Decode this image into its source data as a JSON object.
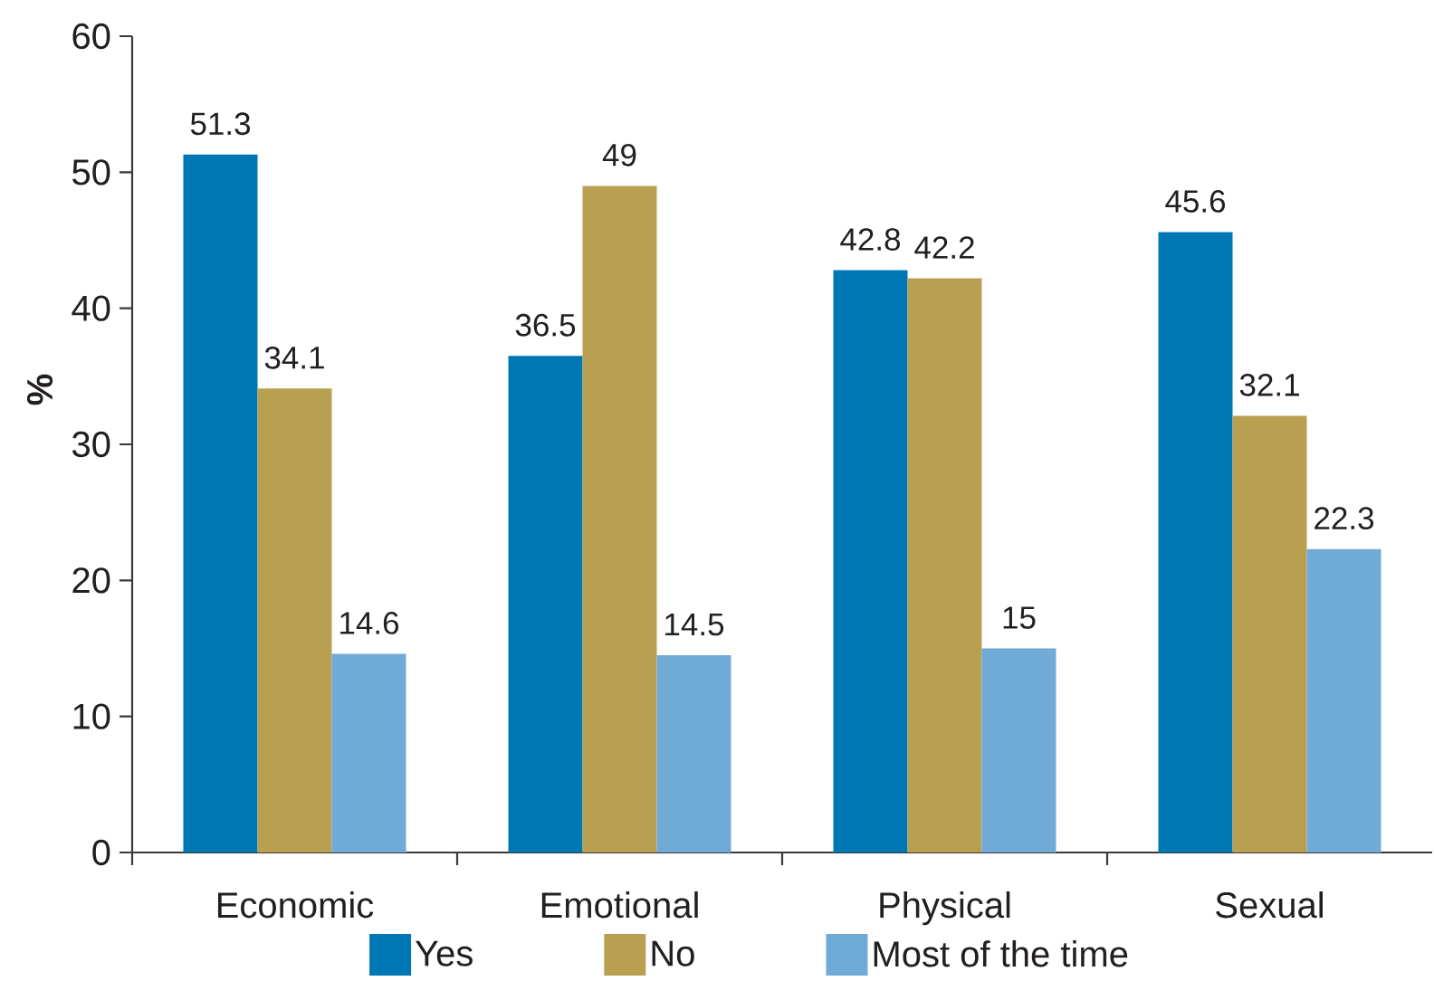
{
  "chart_data": {
    "type": "bar",
    "ylabel": "%",
    "categories": [
      "Economic",
      "Emotional",
      "Physical",
      "Sexual"
    ],
    "series": [
      {
        "name": "Yes",
        "color": "#0077b5",
        "values": [
          51.3,
          36.5,
          42.8,
          45.6
        ]
      },
      {
        "name": "No",
        "color": "#b8a050",
        "values": [
          34.1,
          49,
          42.2,
          32.1
        ]
      },
      {
        "name": "Most of the time",
        "color": "#70aad6",
        "values": [
          14.6,
          14.5,
          15,
          22.3
        ]
      }
    ],
    "ylim": [
      0,
      60
    ],
    "yticks": [
      0,
      10,
      20,
      30,
      40,
      50,
      60
    ],
    "data_labels": true,
    "legend": "bottom"
  }
}
